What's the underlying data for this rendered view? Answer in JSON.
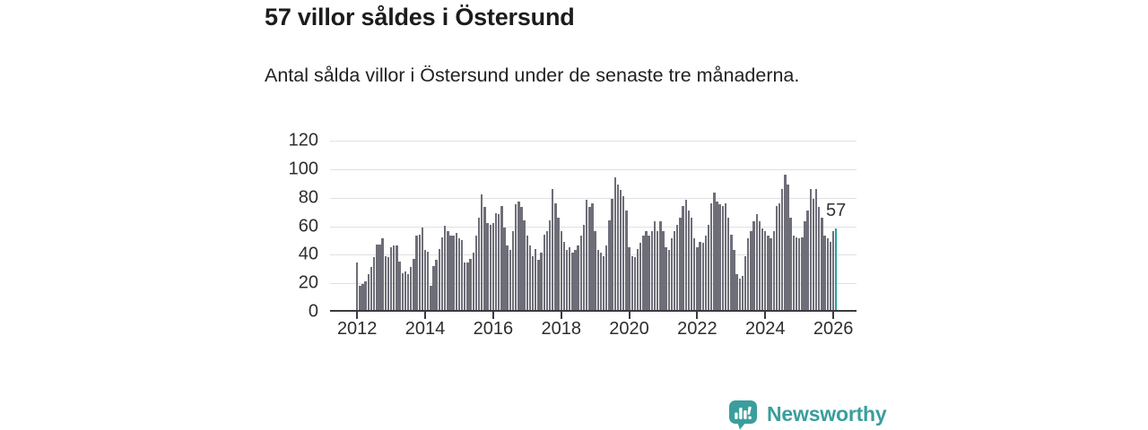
{
  "header": {
    "title": "57 villor såldes i Östersund",
    "subtitle": "Antal sålda villor i Östersund under de senaste tre månaderna."
  },
  "chart_data": {
    "type": "bar",
    "title": "57 villor såldes i Östersund",
    "subtitle": "Antal sålda villor i Östersund under de senaste tre månaderna.",
    "xlabel": "",
    "ylabel": "",
    "frequency": "monthly",
    "x_start": "2012-01",
    "x_end": "2026-02",
    "ylim": [
      0,
      120
    ],
    "y_ticks": [
      0,
      20,
      40,
      60,
      80,
      100,
      120
    ],
    "x_ticks": [
      2012,
      2014,
      2016,
      2018,
      2020,
      2022,
      2024,
      2026
    ],
    "grid": true,
    "legend": false,
    "bar_color": "#6e6e78",
    "highlight_color": "#20a39c",
    "highlight_index": 169,
    "annotation": {
      "text": "57",
      "value": 57
    },
    "values": [
      33,
      17,
      18,
      20,
      25,
      30,
      37,
      46,
      46,
      50,
      38,
      37,
      44,
      45,
      45,
      34,
      26,
      27,
      25,
      30,
      36,
      52,
      53,
      58,
      42,
      41,
      17,
      31,
      35,
      43,
      51,
      59,
      55,
      52,
      52,
      54,
      50,
      49,
      33,
      33,
      36,
      40,
      52,
      65,
      81,
      72,
      61,
      60,
      61,
      68,
      67,
      73,
      58,
      45,
      42,
      55,
      74,
      76,
      72,
      63,
      52,
      45,
      38,
      43,
      35,
      40,
      53,
      55,
      63,
      85,
      75,
      65,
      55,
      48,
      42,
      44,
      40,
      42,
      45,
      52,
      60,
      77,
      72,
      75,
      55,
      42,
      40,
      38,
      45,
      63,
      78,
      93,
      88,
      84,
      80,
      70,
      44,
      38,
      37,
      43,
      47,
      52,
      55,
      52,
      55,
      62,
      55,
      62,
      55,
      44,
      42,
      50,
      55,
      60,
      65,
      73,
      77,
      70,
      65,
      50,
      44,
      48,
      47,
      52,
      60,
      75,
      82,
      76,
      74,
      73,
      75,
      65,
      53,
      42,
      25,
      22,
      24,
      38,
      50,
      55,
      62,
      67,
      62,
      57,
      55,
      52,
      50,
      55,
      73,
      75,
      85,
      95,
      88,
      65,
      52,
      51,
      50,
      51,
      62,
      70,
      85,
      78,
      85,
      72,
      65,
      52,
      50,
      48,
      55,
      57
    ]
  },
  "footer": {
    "brand": "Newsworthy",
    "brand_color": "#3a9e9d",
    "logo_icon": "bar-chart-speech-bubble-icon"
  }
}
